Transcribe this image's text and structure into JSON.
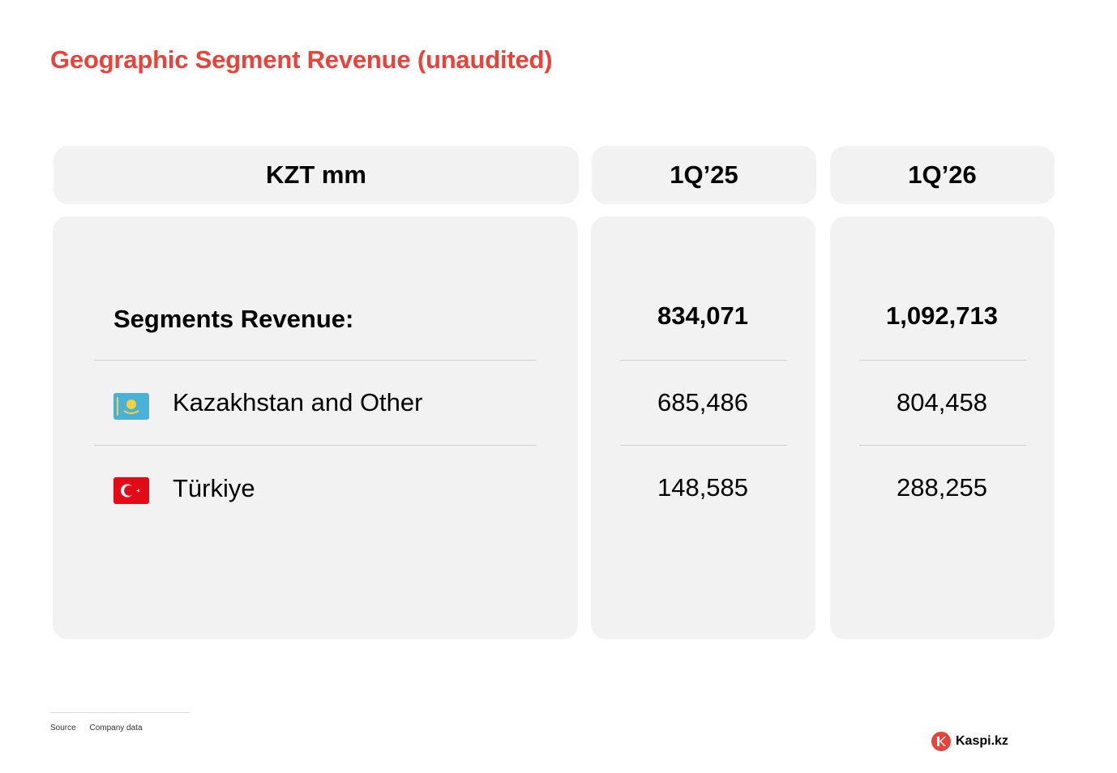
{
  "page": {
    "title": "Geographic Segment Revenue (unaudited)"
  },
  "table": {
    "headers": [
      "KZT mm",
      "1Q’25",
      "1Q’26"
    ],
    "total_label": "Segments Revenue:",
    "total_values": [
      "834,071",
      "1,092,713"
    ],
    "rows": [
      {
        "label": "Kazakhstan and Other",
        "flag": "kazakhstan-flag-icon",
        "values": [
          "685,486",
          "804,458"
        ]
      },
      {
        "label": "Türkiye",
        "flag": "turkey-flag-icon",
        "values": [
          "148,585",
          "288,255"
        ]
      }
    ]
  },
  "footer": {
    "source_label": "Source",
    "source_value": "Company data",
    "brand": "Kaspi.kz"
  },
  "colors": {
    "accent": "#e8433a",
    "card_bg": "#f2f2f2",
    "kz_flag": "#4ab1d8",
    "tr_flag": "#e30a17"
  }
}
